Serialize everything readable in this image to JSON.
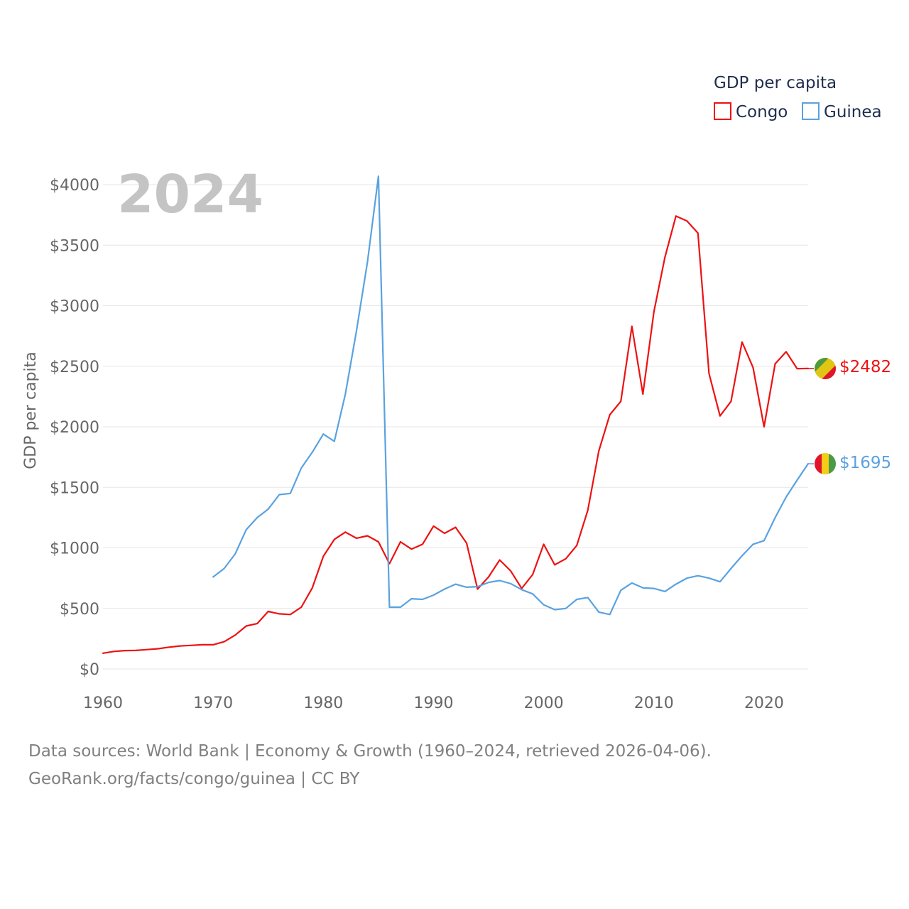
{
  "chart_data": {
    "type": "line",
    "title": "",
    "year_label": "2024",
    "xlabel": "",
    "ylabel": "GDP per capita",
    "xlim": [
      1960,
      2024
    ],
    "ylim": [
      0,
      4000
    ],
    "x_ticks": [
      1960,
      1970,
      1980,
      1990,
      2000,
      2010,
      2020
    ],
    "y_ticks": [
      0,
      500,
      1000,
      1500,
      2000,
      2500,
      3000,
      3500,
      4000
    ],
    "y_tick_labels": [
      "$0",
      "$500",
      "$1000",
      "$1500",
      "$2000",
      "$2500",
      "$3000",
      "$3500",
      "$4000"
    ],
    "legend": {
      "title": "GDP per capita",
      "position": "top-right"
    },
    "x": [
      1960,
      1961,
      1962,
      1963,
      1964,
      1965,
      1966,
      1967,
      1968,
      1969,
      1970,
      1971,
      1972,
      1973,
      1974,
      1975,
      1976,
      1977,
      1978,
      1979,
      1980,
      1981,
      1982,
      1983,
      1984,
      1985,
      1986,
      1987,
      1988,
      1989,
      1990,
      1991,
      1992,
      1993,
      1994,
      1995,
      1996,
      1997,
      1998,
      1999,
      2000,
      2001,
      2002,
      2003,
      2004,
      2005,
      2006,
      2007,
      2008,
      2009,
      2010,
      2011,
      2012,
      2013,
      2014,
      2015,
      2016,
      2017,
      2018,
      2019,
      2020,
      2021,
      2022,
      2023,
      2024
    ],
    "series": [
      {
        "name": "Congo",
        "color": "#ee1111",
        "end_label": "$2482",
        "values": [
          130,
          145,
          152,
          153,
          160,
          167,
          180,
          190,
          195,
          200,
          200,
          225,
          280,
          355,
          375,
          475,
          455,
          450,
          510,
          670,
          930,
          1070,
          1130,
          1080,
          1100,
          1050,
          870,
          1050,
          990,
          1030,
          1180,
          1120,
          1170,
          1040,
          660,
          760,
          900,
          810,
          665,
          780,
          1030,
          860,
          910,
          1020,
          1310,
          1800,
          2100,
          2210,
          2830,
          2270,
          2950,
          3400,
          3740,
          3700,
          3600,
          2440,
          2090,
          2210,
          2700,
          2490,
          2000,
          2520,
          2620,
          2480,
          2482
        ]
      },
      {
        "name": "Guinea",
        "color": "#5aa2e0",
        "end_label": "$1695",
        "values": [
          null,
          null,
          null,
          null,
          null,
          null,
          null,
          null,
          null,
          null,
          760,
          830,
          950,
          1150,
          1250,
          1320,
          1440,
          1450,
          1660,
          1790,
          1940,
          1880,
          2270,
          2790,
          3360,
          4070,
          510,
          510,
          580,
          575,
          610,
          660,
          700,
          675,
          680,
          715,
          730,
          705,
          655,
          620,
          530,
          490,
          500,
          575,
          590,
          470,
          450,
          650,
          710,
          670,
          665,
          640,
          700,
          750,
          770,
          750,
          720,
          830,
          935,
          1030,
          1060,
          1250,
          1420,
          1560,
          1695
        ]
      }
    ]
  },
  "source_lines": [
    "Data sources: World Bank | Economy & Growth (1960–2024, retrieved 2026-04-06).",
    "GeoRank.org/facts/congo/guinea | CC BY"
  ]
}
